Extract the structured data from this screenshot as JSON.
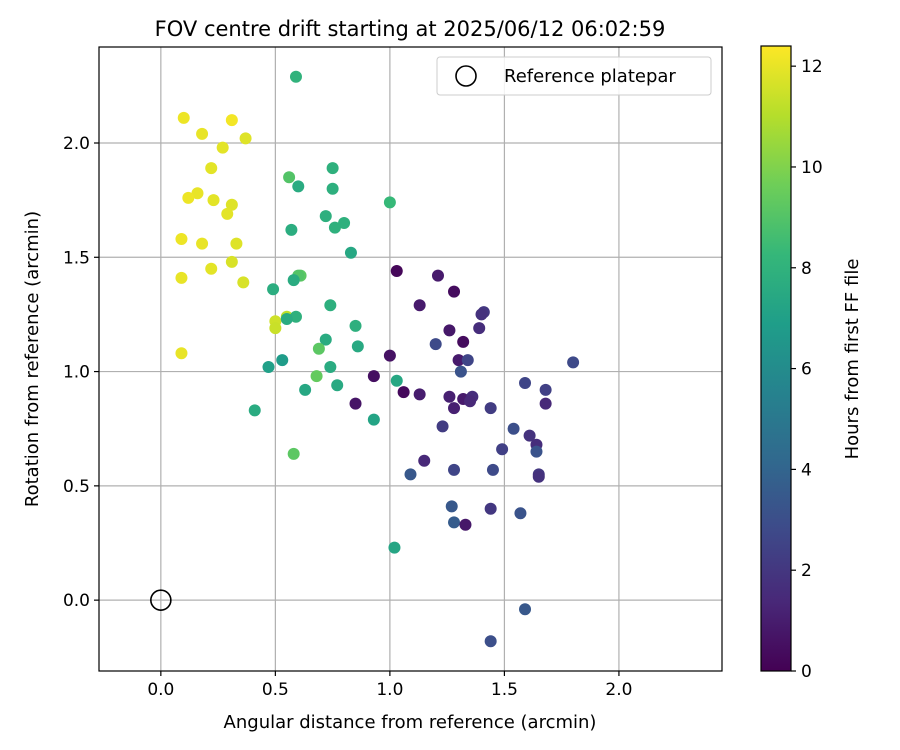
{
  "chart_data": {
    "type": "scatter",
    "title": "FOV centre drift starting at 2025/06/12 06:02:59",
    "xlabel": "Angular distance from reference (arcmin)",
    "ylabel": "Rotation from reference (arcmin)",
    "xlim": [
      -0.27,
      2.45
    ],
    "ylim": [
      -0.31,
      2.42
    ],
    "xticks": [
      0.0,
      0.5,
      1.0,
      1.5,
      2.0
    ],
    "xtick_labels": [
      "0.0",
      "0.5",
      "1.0",
      "1.5",
      "2.0"
    ],
    "yticks": [
      0.0,
      0.5,
      1.0,
      1.5,
      2.0
    ],
    "ytick_labels": [
      "0.0",
      "0.5",
      "1.0",
      "1.5",
      "2.0"
    ],
    "grid": true,
    "legend": {
      "position": "top-right",
      "label": "Reference platepar"
    },
    "reference_point": {
      "x": 0.0,
      "y": 0.0
    },
    "colorbar": {
      "label": "Hours from first FF file",
      "min": 0,
      "max": 12.4,
      "ticks": [
        0,
        2,
        4,
        6,
        8,
        10,
        12
      ],
      "tick_labels": [
        "0",
        "2",
        "4",
        "6",
        "8",
        "10",
        "12"
      ],
      "colormap_stops": [
        "#440154",
        "#482878",
        "#3e4989",
        "#31688e",
        "#26828e",
        "#1f9e89",
        "#35b779",
        "#6ece58",
        "#b5de2b",
        "#fde725"
      ]
    },
    "points": [
      {
        "x": 0.1,
        "y": 2.11,
        "h": 12.1
      },
      {
        "x": 0.18,
        "y": 2.04,
        "h": 12.0
      },
      {
        "x": 0.31,
        "y": 2.1,
        "h": 12.2
      },
      {
        "x": 0.27,
        "y": 1.98,
        "h": 11.9
      },
      {
        "x": 0.37,
        "y": 2.02,
        "h": 11.8
      },
      {
        "x": 0.22,
        "y": 1.89,
        "h": 11.9
      },
      {
        "x": 0.16,
        "y": 1.78,
        "h": 12.0
      },
      {
        "x": 0.12,
        "y": 1.76,
        "h": 12.1
      },
      {
        "x": 0.23,
        "y": 1.75,
        "h": 11.9
      },
      {
        "x": 0.31,
        "y": 1.73,
        "h": 11.8
      },
      {
        "x": 0.29,
        "y": 1.69,
        "h": 11.9
      },
      {
        "x": 0.09,
        "y": 1.58,
        "h": 12.1
      },
      {
        "x": 0.18,
        "y": 1.56,
        "h": 12.0
      },
      {
        "x": 0.33,
        "y": 1.56,
        "h": 11.8
      },
      {
        "x": 0.31,
        "y": 1.48,
        "h": 11.7
      },
      {
        "x": 0.22,
        "y": 1.45,
        "h": 11.9
      },
      {
        "x": 0.09,
        "y": 1.41,
        "h": 12.0
      },
      {
        "x": 0.36,
        "y": 1.39,
        "h": 11.7
      },
      {
        "x": 0.09,
        "y": 1.08,
        "h": 12.0
      },
      {
        "x": 0.5,
        "y": 1.22,
        "h": 11.5
      },
      {
        "x": 0.5,
        "y": 1.19,
        "h": 11.4
      },
      {
        "x": 0.55,
        "y": 1.24,
        "h": 11.2
      },
      {
        "x": 0.59,
        "y": 2.29,
        "h": 8.0
      },
      {
        "x": 0.75,
        "y": 1.89,
        "h": 7.9
      },
      {
        "x": 0.56,
        "y": 1.85,
        "h": 9.0
      },
      {
        "x": 0.6,
        "y": 1.81,
        "h": 7.6
      },
      {
        "x": 0.75,
        "y": 1.8,
        "h": 7.8
      },
      {
        "x": 1.0,
        "y": 1.74,
        "h": 8.3
      },
      {
        "x": 0.72,
        "y": 1.68,
        "h": 7.8
      },
      {
        "x": 0.8,
        "y": 1.65,
        "h": 7.9
      },
      {
        "x": 0.76,
        "y": 1.63,
        "h": 7.9
      },
      {
        "x": 0.57,
        "y": 1.62,
        "h": 7.7
      },
      {
        "x": 0.83,
        "y": 1.52,
        "h": 7.4
      },
      {
        "x": 0.61,
        "y": 1.42,
        "h": 9.2
      },
      {
        "x": 0.6,
        "y": 1.42,
        "h": 9.0
      },
      {
        "x": 0.58,
        "y": 1.4,
        "h": 7.6
      },
      {
        "x": 0.49,
        "y": 1.36,
        "h": 7.7
      },
      {
        "x": 0.74,
        "y": 1.29,
        "h": 7.8
      },
      {
        "x": 0.59,
        "y": 1.24,
        "h": 7.9
      },
      {
        "x": 0.55,
        "y": 1.23,
        "h": 7.6
      },
      {
        "x": 0.85,
        "y": 1.2,
        "h": 7.8
      },
      {
        "x": 0.72,
        "y": 1.14,
        "h": 7.6
      },
      {
        "x": 0.86,
        "y": 1.11,
        "h": 7.5
      },
      {
        "x": 0.69,
        "y": 1.1,
        "h": 9.2
      },
      {
        "x": 0.53,
        "y": 1.05,
        "h": 6.8
      },
      {
        "x": 0.74,
        "y": 1.02,
        "h": 7.6
      },
      {
        "x": 0.47,
        "y": 1.02,
        "h": 7.0
      },
      {
        "x": 0.68,
        "y": 0.98,
        "h": 9.4
      },
      {
        "x": 1.03,
        "y": 0.96,
        "h": 7.4
      },
      {
        "x": 0.77,
        "y": 0.94,
        "h": 7.5
      },
      {
        "x": 0.63,
        "y": 0.92,
        "h": 7.4
      },
      {
        "x": 0.41,
        "y": 0.83,
        "h": 7.6
      },
      {
        "x": 0.93,
        "y": 0.79,
        "h": 7.2
      },
      {
        "x": 0.58,
        "y": 0.64,
        "h": 9.2
      },
      {
        "x": 1.02,
        "y": 0.23,
        "h": 7.3
      },
      {
        "x": 1.03,
        "y": 1.44,
        "h": 0.2
      },
      {
        "x": 1.21,
        "y": 1.42,
        "h": 0.9
      },
      {
        "x": 1.28,
        "y": 1.35,
        "h": 0.4
      },
      {
        "x": 1.13,
        "y": 1.29,
        "h": 0.9
      },
      {
        "x": 1.41,
        "y": 1.26,
        "h": 2.0
      },
      {
        "x": 1.4,
        "y": 1.25,
        "h": 1.8
      },
      {
        "x": 1.39,
        "y": 1.19,
        "h": 1.6
      },
      {
        "x": 1.26,
        "y": 1.18,
        "h": 0.8
      },
      {
        "x": 1.32,
        "y": 1.13,
        "h": 0.4
      },
      {
        "x": 1.2,
        "y": 1.12,
        "h": 2.8
      },
      {
        "x": 1.0,
        "y": 1.07,
        "h": 0.6
      },
      {
        "x": 1.3,
        "y": 1.05,
        "h": 0.9
      },
      {
        "x": 1.34,
        "y": 1.05,
        "h": 2.6
      },
      {
        "x": 1.8,
        "y": 1.04,
        "h": 2.8
      },
      {
        "x": 1.31,
        "y": 1.0,
        "h": 3.2
      },
      {
        "x": 0.93,
        "y": 0.98,
        "h": 0.5
      },
      {
        "x": 1.59,
        "y": 0.95,
        "h": 2.6
      },
      {
        "x": 1.68,
        "y": 0.92,
        "h": 2.4
      },
      {
        "x": 1.06,
        "y": 0.91,
        "h": 0.3
      },
      {
        "x": 1.13,
        "y": 0.9,
        "h": 1.0
      },
      {
        "x": 1.26,
        "y": 0.89,
        "h": 1.1
      },
      {
        "x": 1.32,
        "y": 0.88,
        "h": 0.9
      },
      {
        "x": 1.36,
        "y": 0.89,
        "h": 1.6
      },
      {
        "x": 1.35,
        "y": 0.87,
        "h": 1.4
      },
      {
        "x": 0.85,
        "y": 0.86,
        "h": 0.7
      },
      {
        "x": 1.68,
        "y": 0.86,
        "h": 1.4
      },
      {
        "x": 1.28,
        "y": 0.84,
        "h": 1.1
      },
      {
        "x": 1.44,
        "y": 0.84,
        "h": 2.2
      },
      {
        "x": 1.23,
        "y": 0.76,
        "h": 2.2
      },
      {
        "x": 1.54,
        "y": 0.75,
        "h": 3.0
      },
      {
        "x": 1.61,
        "y": 0.72,
        "h": 1.8
      },
      {
        "x": 1.64,
        "y": 0.68,
        "h": 1.6
      },
      {
        "x": 1.49,
        "y": 0.66,
        "h": 2.4
      },
      {
        "x": 1.64,
        "y": 0.65,
        "h": 3.2
      },
      {
        "x": 1.15,
        "y": 0.61,
        "h": 1.4
      },
      {
        "x": 1.28,
        "y": 0.57,
        "h": 2.6
      },
      {
        "x": 1.45,
        "y": 0.57,
        "h": 2.8
      },
      {
        "x": 1.09,
        "y": 0.55,
        "h": 3.4
      },
      {
        "x": 1.65,
        "y": 0.55,
        "h": 2.0
      },
      {
        "x": 1.65,
        "y": 0.54,
        "h": 1.8
      },
      {
        "x": 1.27,
        "y": 0.41,
        "h": 3.4
      },
      {
        "x": 1.44,
        "y": 0.4,
        "h": 2.0
      },
      {
        "x": 1.57,
        "y": 0.38,
        "h": 3.2
      },
      {
        "x": 1.28,
        "y": 0.34,
        "h": 3.6
      },
      {
        "x": 1.33,
        "y": 0.33,
        "h": 0.8
      },
      {
        "x": 1.59,
        "y": -0.04,
        "h": 3.4
      },
      {
        "x": 1.44,
        "y": -0.18,
        "h": 3.0
      }
    ]
  }
}
